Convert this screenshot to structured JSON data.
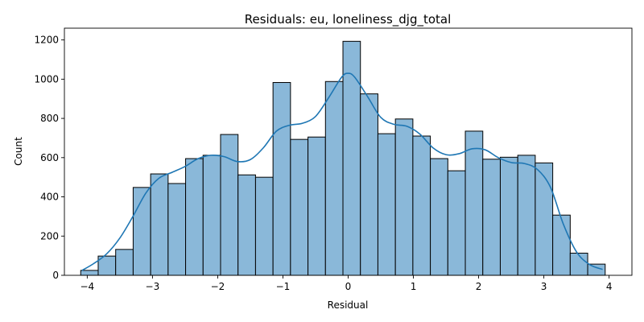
{
  "chart_data": {
    "type": "bar",
    "title": "Residuals: eu, loneliness_djg_total",
    "xlabel": "Residual",
    "ylabel": "Count",
    "xlim": [
      -4.35,
      4.35
    ],
    "ylim": [
      0,
      1260
    ],
    "xticks": [
      -4,
      -3,
      -2,
      -1,
      0,
      1,
      2,
      3,
      4
    ],
    "xtick_labels": [
      "−4",
      "−3",
      "−2",
      "−1",
      "0",
      "1",
      "2",
      "3",
      "4"
    ],
    "yticks": [
      0,
      200,
      400,
      600,
      800,
      1000,
      1200
    ],
    "ytick_labels": [
      "0",
      "200",
      "400",
      "600",
      "800",
      "1000",
      "1200"
    ],
    "bin_start": -4.1,
    "bin_width": 0.268,
    "values": [
      25,
      98,
      132,
      448,
      517,
      468,
      595,
      612,
      718,
      512,
      500,
      983,
      693,
      705,
      988,
      1193,
      925,
      722,
      797,
      710,
      595,
      533,
      735,
      592,
      602,
      612,
      573,
      307,
      113,
      57
    ],
    "kde": {
      "x": [
        -4.08,
        -3.9,
        -3.7,
        -3.5,
        -3.3,
        -3.1,
        -2.9,
        -2.7,
        -2.5,
        -2.3,
        -2.1,
        -1.9,
        -1.7,
        -1.5,
        -1.3,
        -1.1,
        -0.9,
        -0.7,
        -0.5,
        -0.3,
        -0.1,
        0.0,
        0.1,
        0.3,
        0.5,
        0.7,
        0.9,
        1.1,
        1.3,
        1.5,
        1.7,
        1.9,
        2.1,
        2.3,
        2.5,
        2.7,
        2.9,
        3.1,
        3.3,
        3.5,
        3.7,
        3.9
      ],
      "y": [
        25,
        60,
        110,
        190,
        300,
        420,
        495,
        525,
        555,
        595,
        612,
        605,
        580,
        590,
        650,
        735,
        765,
        775,
        810,
        905,
        1010,
        1030,
        1010,
        910,
        805,
        770,
        760,
        720,
        650,
        615,
        620,
        645,
        640,
        600,
        575,
        570,
        540,
        450,
        260,
        120,
        55,
        30
      ]
    },
    "grid": false,
    "legend": "none"
  }
}
